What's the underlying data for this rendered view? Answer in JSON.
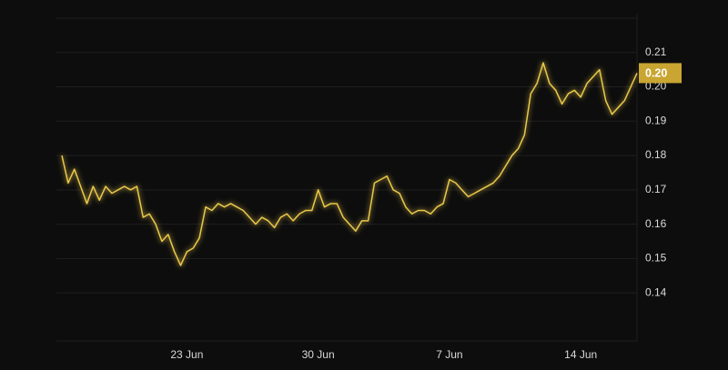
{
  "chart_data": {
    "type": "line",
    "color": "#e9c84a",
    "grid": true,
    "categories": [
      null,
      null,
      null,
      null,
      null,
      null,
      null,
      null,
      null,
      null,
      null,
      null,
      null,
      null,
      null,
      null,
      null,
      null,
      null,
      null,
      "23 Jun",
      null,
      null,
      null,
      null,
      null,
      null,
      null,
      null,
      null,
      null,
      null,
      null,
      null,
      null,
      null,
      null,
      null,
      null,
      null,
      null,
      "30 Jun",
      null,
      null,
      null,
      null,
      null,
      null,
      null,
      null,
      null,
      null,
      null,
      null,
      null,
      null,
      null,
      null,
      null,
      null,
      null,
      null,
      "7 Jun",
      null,
      null,
      null,
      null,
      null,
      null,
      null,
      null,
      null,
      null,
      null,
      null,
      null,
      null,
      null,
      null,
      null,
      null,
      null,
      null,
      "14 Jun",
      null,
      null,
      null,
      null,
      null,
      null,
      null,
      null,
      null
    ],
    "values": [
      0.18,
      0.172,
      0.176,
      0.171,
      0.166,
      0.171,
      0.167,
      0.171,
      0.169,
      0.17,
      0.171,
      0.17,
      0.171,
      0.162,
      0.163,
      0.16,
      0.155,
      0.157,
      0.152,
      0.148,
      0.152,
      0.153,
      0.156,
      0.165,
      0.164,
      0.166,
      0.165,
      0.166,
      0.165,
      0.164,
      0.162,
      0.16,
      0.162,
      0.161,
      0.159,
      0.162,
      0.163,
      0.161,
      0.163,
      0.164,
      0.164,
      0.17,
      0.165,
      0.166,
      0.166,
      0.162,
      0.16,
      0.158,
      0.161,
      0.161,
      0.172,
      0.173,
      0.174,
      0.17,
      0.169,
      0.165,
      0.163,
      0.164,
      0.164,
      0.163,
      0.165,
      0.166,
      0.173,
      0.172,
      0.17,
      0.168,
      0.169,
      0.17,
      0.171,
      0.172,
      0.174,
      0.177,
      0.18,
      0.182,
      0.186,
      0.198,
      0.201,
      0.207,
      0.201,
      0.199,
      0.195,
      0.198,
      0.199,
      0.197,
      0.201,
      0.203,
      0.205,
      0.196,
      0.192,
      0.194,
      0.196,
      0.2,
      0.204
    ],
    "value_labels": [
      null,
      null,
      null,
      null,
      null,
      null,
      null,
      null,
      null,
      null,
      null,
      null,
      null,
      null,
      null,
      null,
      null,
      null,
      null,
      null,
      null,
      null,
      null,
      null,
      null,
      null,
      null,
      null,
      null,
      null,
      null,
      null,
      null,
      null,
      null,
      null,
      null,
      null,
      null,
      null,
      null,
      null,
      null,
      null,
      null,
      null,
      null,
      null,
      null,
      null,
      null,
      null,
      null,
      null,
      null,
      null,
      null,
      null,
      null,
      null,
      null,
      null,
      null,
      null,
      null,
      null,
      null,
      null,
      null,
      null,
      null,
      null,
      null,
      null,
      null,
      null,
      null,
      null,
      null,
      null,
      null,
      null,
      null,
      null,
      null,
      null,
      null,
      null,
      null,
      null,
      null,
      null,
      "0.20"
    ],
    "ylim": [
      0.126,
      0.22
    ],
    "yticks": [
      0.14,
      0.15,
      0.16,
      0.17,
      0.18,
      0.19,
      {
        "value": 0.2,
        "label": "0.20"
      },
      0.21
    ]
  }
}
